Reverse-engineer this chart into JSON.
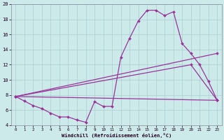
{
  "xlabel": "Windchill (Refroidissement éolien,°C)",
  "background_color": "#cdeaea",
  "grid_color": "#aacece",
  "line_color": "#993399",
  "xlim": [
    -0.5,
    23.5
  ],
  "ylim": [
    4,
    20
  ],
  "xticks": [
    0,
    1,
    2,
    3,
    4,
    5,
    6,
    7,
    8,
    9,
    10,
    11,
    12,
    13,
    14,
    15,
    16,
    17,
    18,
    19,
    20,
    21,
    22,
    23
  ],
  "yticks": [
    4,
    6,
    8,
    10,
    12,
    14,
    16,
    18,
    20
  ],
  "series1_x": [
    0,
    1,
    2,
    3,
    4,
    5,
    6,
    7,
    8,
    9,
    10,
    11,
    12,
    13,
    14,
    15,
    16,
    17,
    18,
    19,
    20,
    21,
    22,
    23
  ],
  "series1_y": [
    7.8,
    7.2,
    6.6,
    6.2,
    5.6,
    5.1,
    5.1,
    4.7,
    4.4,
    7.1,
    6.5,
    6.5,
    13.0,
    15.5,
    17.8,
    19.2,
    19.2,
    18.5,
    19.0,
    14.8,
    13.5,
    12.0,
    9.8,
    7.3
  ],
  "series2_x": [
    0,
    23
  ],
  "series2_y": [
    7.8,
    7.3
  ],
  "series3_x": [
    0,
    23
  ],
  "series3_y": [
    7.8,
    13.5
  ],
  "series4_x": [
    0,
    20,
    23
  ],
  "series4_y": [
    7.8,
    12.0,
    7.3
  ]
}
